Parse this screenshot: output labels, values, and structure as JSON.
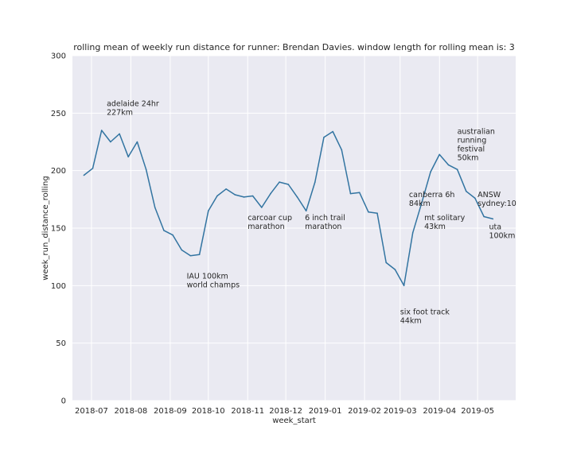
{
  "chart_data": {
    "type": "line",
    "title": "rolling mean of weekly run distance for runner: Brendan Davies. window length for rolling mean is: 3",
    "xlabel": "week_start",
    "ylabel": "week_run_distance_rolling",
    "ylim": [
      0,
      300
    ],
    "yticks": [
      0,
      50,
      100,
      150,
      200,
      250,
      300
    ],
    "xlim": [
      "2018-06-16",
      "2019-05-31"
    ],
    "xticks": [
      {
        "date": "2018-07-01",
        "label": "2018-07"
      },
      {
        "date": "2018-08-01",
        "label": "2018-08"
      },
      {
        "date": "2018-09-01",
        "label": "2018-09"
      },
      {
        "date": "2018-10-01",
        "label": "2018-10"
      },
      {
        "date": "2018-11-01",
        "label": "2018-11"
      },
      {
        "date": "2018-12-01",
        "label": "2018-12"
      },
      {
        "date": "2019-01-01",
        "label": "2019-01"
      },
      {
        "date": "2019-02-01",
        "label": "2019-02"
      },
      {
        "date": "2019-03-01",
        "label": "2019-03"
      },
      {
        "date": "2019-04-01",
        "label": "2019-04"
      },
      {
        "date": "2019-05-01",
        "label": "2019-05"
      }
    ],
    "grid": true,
    "colors": {
      "line": "#3274a1",
      "background": "#eaeaf2",
      "grid": "#ffffff"
    },
    "series": [
      {
        "x": [
          "2018-06-25",
          "2018-07-02",
          "2018-07-09",
          "2018-07-16",
          "2018-07-23",
          "2018-07-30",
          "2018-08-06",
          "2018-08-13",
          "2018-08-20",
          "2018-08-27",
          "2018-09-03",
          "2018-09-10",
          "2018-09-17",
          "2018-09-24",
          "2018-10-01",
          "2018-10-08",
          "2018-10-15",
          "2018-10-22",
          "2018-10-29",
          "2018-11-05",
          "2018-11-12",
          "2018-11-19",
          "2018-11-26",
          "2018-12-03",
          "2018-12-10",
          "2018-12-17",
          "2018-12-24",
          "2018-12-31",
          "2019-01-07",
          "2019-01-14",
          "2019-01-21",
          "2019-01-28",
          "2019-02-04",
          "2019-02-11",
          "2019-02-18",
          "2019-02-25",
          "2019-03-04",
          "2019-03-11",
          "2019-03-18",
          "2019-03-25",
          "2019-04-01",
          "2019-04-08",
          "2019-04-15",
          "2019-04-22",
          "2019-04-29",
          "2019-05-06",
          "2019-05-13"
        ],
        "y": [
          196,
          202,
          235,
          225,
          232,
          212,
          225,
          201,
          168,
          148,
          144,
          131,
          126,
          127,
          165,
          178,
          184,
          179,
          177,
          178,
          168,
          180,
          190,
          188,
          177,
          165,
          190,
          229,
          234,
          218,
          180,
          181,
          164,
          163,
          120,
          114,
          100,
          146,
          172,
          199,
          214,
          205,
          201,
          182,
          176,
          160,
          158
        ]
      }
    ],
    "annotations": [
      {
        "lines": [
          "adelaide 24hr",
          "227km"
        ],
        "x": "2018-07-13",
        "y": 256
      },
      {
        "lines": [
          "IAU 100km",
          "world champs"
        ],
        "x": "2018-09-14",
        "y": 106
      },
      {
        "lines": [
          "carcoar cup",
          "marathon"
        ],
        "x": "2018-11-01",
        "y": 157
      },
      {
        "lines": [
          "6 inch trail",
          "marathon"
        ],
        "x": "2018-12-16",
        "y": 157
      },
      {
        "lines": [
          "six foot track",
          "44km"
        ],
        "x": "2019-03-01",
        "y": 75
      },
      {
        "lines": [
          "canberra 6h",
          "84km"
        ],
        "x": "2019-03-08",
        "y": 177
      },
      {
        "lines": [
          "mt solitary",
          "43km"
        ],
        "x": "2019-03-20",
        "y": 157
      },
      {
        "lines": [
          "australian",
          "running",
          "festival",
          "50km"
        ],
        "x": "2019-04-15",
        "y": 232
      },
      {
        "lines": [
          "ANSW",
          "sydney:10"
        ],
        "x": "2019-05-01",
        "y": 177
      },
      {
        "lines": [
          "uta",
          "100km"
        ],
        "x": "2019-05-10",
        "y": 149
      }
    ]
  }
}
